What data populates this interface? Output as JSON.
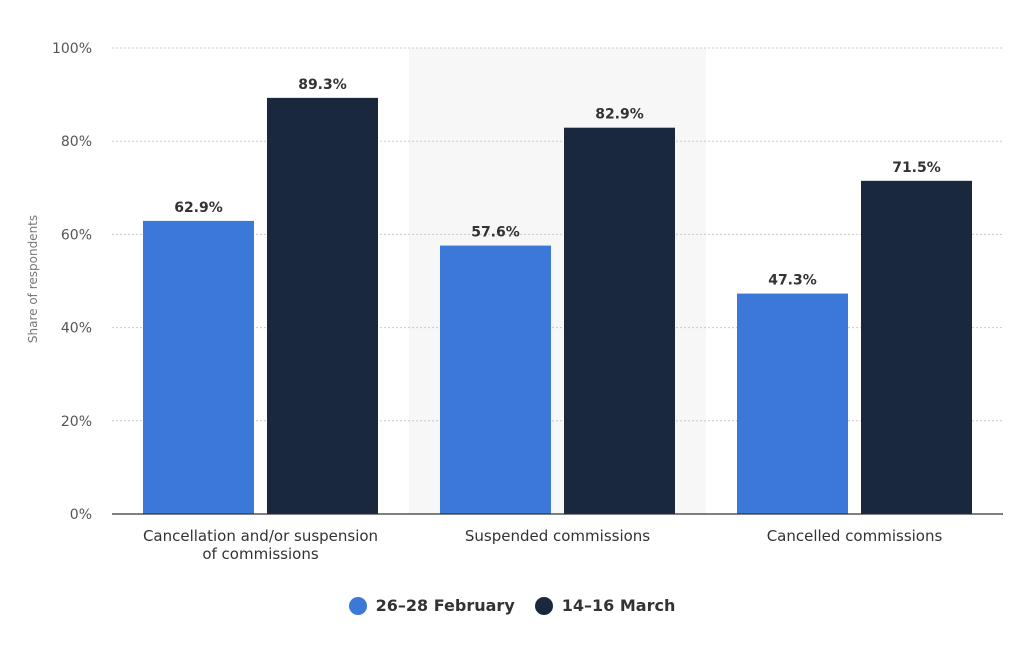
{
  "chart_data": {
    "type": "bar",
    "categories": [
      [
        "Cancellation and/or suspension",
        "of commissions"
      ],
      [
        "Suspended commissions"
      ],
      [
        "Cancelled commissions"
      ]
    ],
    "series": [
      {
        "name": "26-28 February",
        "values": [
          62.9,
          57.6,
          47.3
        ],
        "labels": [
          "62.9%",
          "57.6%",
          "47.3%"
        ],
        "color": "#3b78d8"
      },
      {
        "name": "14-16 March",
        "values": [
          89.3,
          82.9,
          71.5
        ],
        "labels": [
          "89.3%",
          "82.9%",
          "71.5%"
        ],
        "color": "#19283c"
      }
    ],
    "ylabel": "Share of respondents",
    "xlabel": "",
    "ylim": [
      0,
      100
    ],
    "yticks": [
      0,
      20,
      40,
      60,
      80,
      100
    ],
    "ytick_labels": [
      "0%",
      "20%",
      "40%",
      "60%",
      "80%",
      "100%"
    ],
    "grid": true,
    "highlighted_category": "Suspended commissions",
    "legend_position": "bottom-center"
  },
  "legend": {
    "items": [
      {
        "label": "26–28 February",
        "color": "#3b78d8"
      },
      {
        "label": "14–16 March",
        "color": "#19283c"
      }
    ]
  }
}
